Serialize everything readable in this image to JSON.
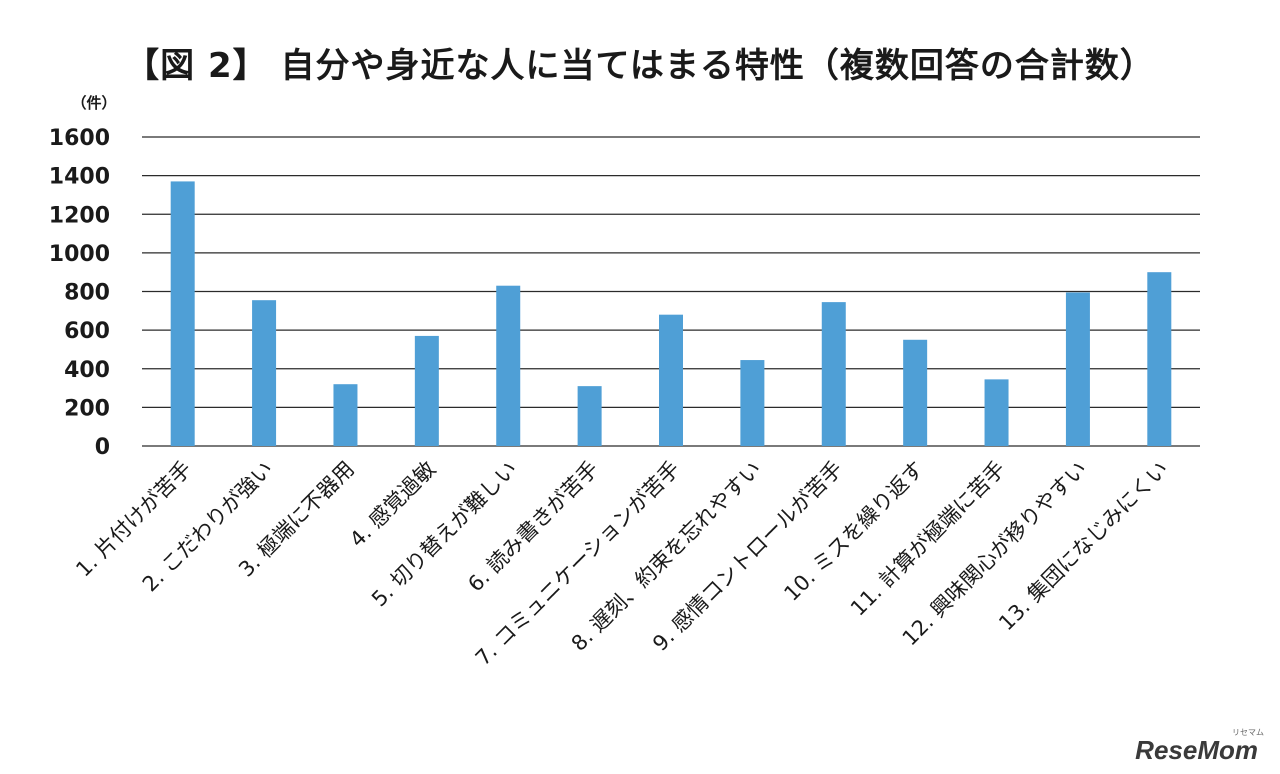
{
  "chart_data": {
    "type": "bar",
    "title": "【図 2】 自分や身近な人に当てはまる特性（複数回答の合計数）",
    "ylabel": "（件）",
    "ylim": [
      0,
      1600
    ],
    "yticks": [
      0,
      200,
      400,
      600,
      800,
      1000,
      1200,
      1400,
      1600
    ],
    "grid": true,
    "bar_color": "#4f9fd6",
    "categories": [
      "1. 片付けが苦手",
      "2. こだわりが強い",
      "3. 極端に不器用",
      "4. 感覚過敏",
      "5. 切り替えが難しい",
      "6. 読み書きが苦手",
      "7. コミュニケーションが苦手",
      "8. 遅刻、約束を忘れやすい",
      "9. 感情コントロールが苦手",
      "10. ミスを繰り返す",
      "11. 計算が極端に苦手",
      "12. 興味関心が移りやすい",
      "13. 集団になじみにくい"
    ],
    "values": [
      1370,
      755,
      320,
      570,
      830,
      310,
      680,
      445,
      745,
      550,
      345,
      795,
      900
    ]
  },
  "watermark": {
    "logo": "ReseMom",
    "logo_sub": "リセマム"
  }
}
